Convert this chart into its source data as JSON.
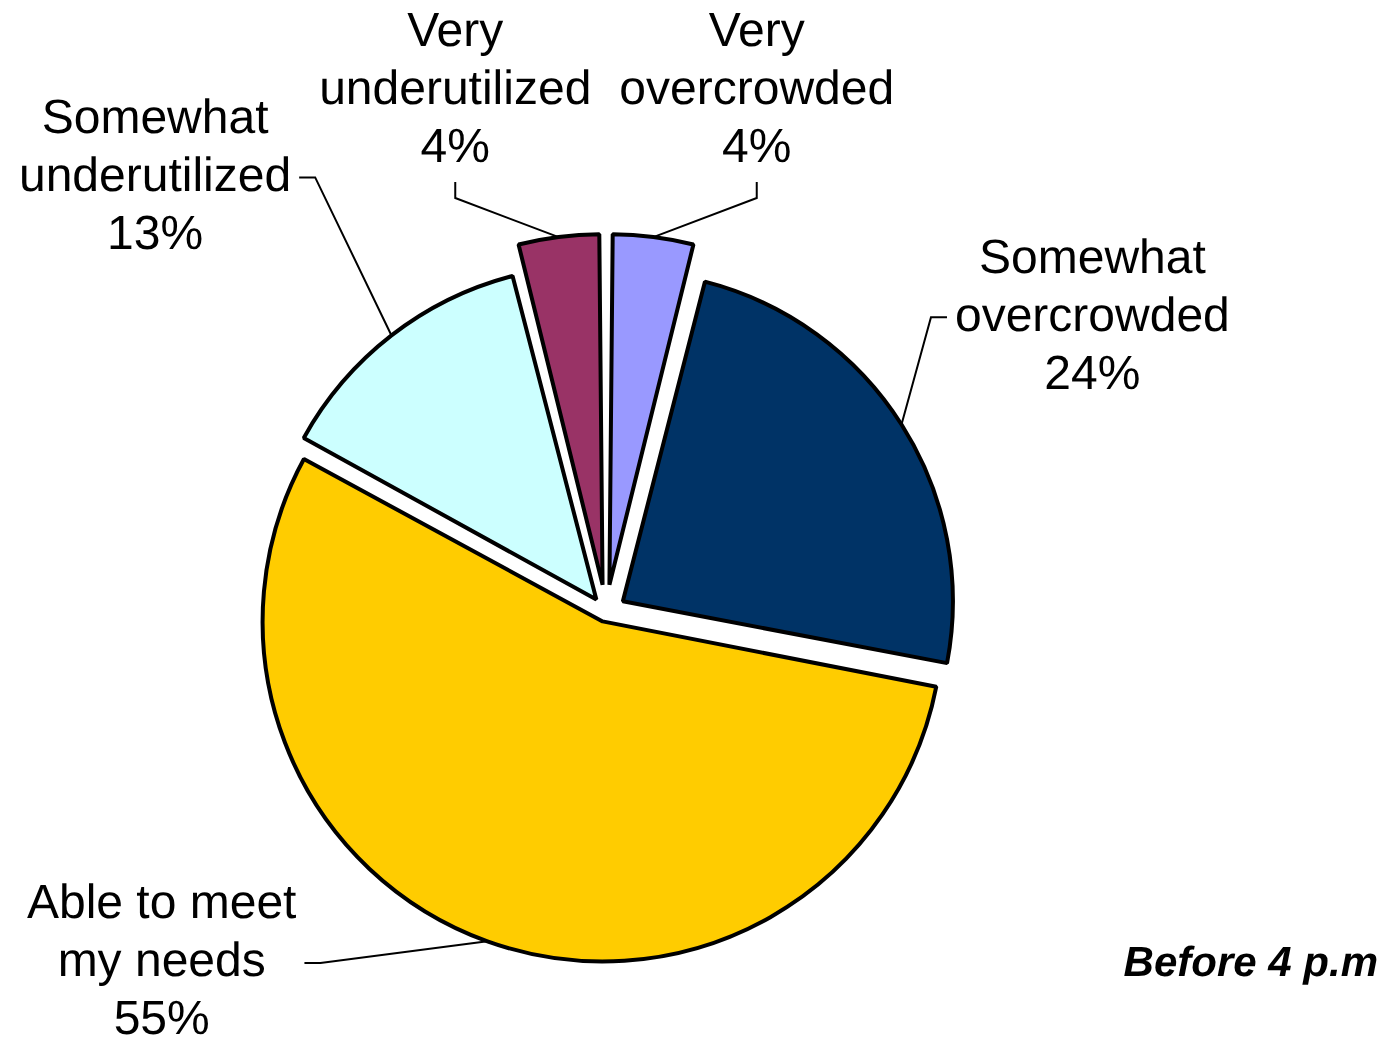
{
  "chart_data": {
    "type": "pie",
    "categories": [
      "Very overcrowded",
      "Somewhat overcrowded",
      "Able to meet my needs",
      "Somewhat underutilized",
      "Very underutilized"
    ],
    "values": [
      4,
      24,
      55,
      13,
      4
    ],
    "colors": [
      "#9999ff",
      "#003366",
      "#ffcc00",
      "#ccffff",
      "#993366"
    ],
    "value_labels": [
      "4%",
      "24%",
      "55%",
      "13%",
      "4%"
    ],
    "annotations": [
      "Before 4 p.m"
    ],
    "legend": false
  }
}
